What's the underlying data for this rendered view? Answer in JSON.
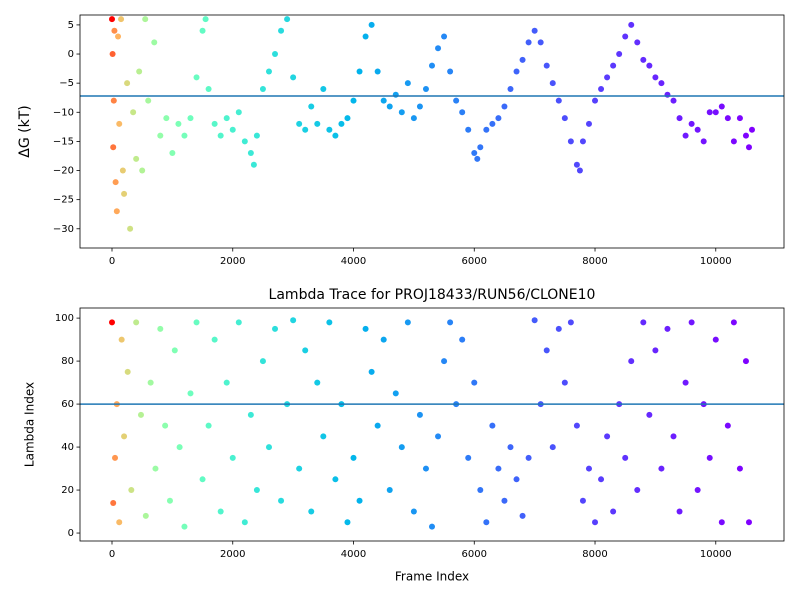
{
  "chart_data": [
    {
      "type": "scatter",
      "ylabel": "ΔG (kT)",
      "x": [
        0,
        10,
        20,
        30,
        40,
        60,
        80,
        100,
        120,
        150,
        180,
        200,
        250,
        300,
        350,
        400,
        450,
        500,
        550,
        600,
        700,
        800,
        900,
        1000,
        1100,
        1200,
        1300,
        1400,
        1500,
        1550,
        1600,
        1700,
        1800,
        1900,
        2000,
        2100,
        2200,
        2300,
        2350,
        2400,
        2500,
        2600,
        2700,
        2800,
        2900,
        3000,
        3100,
        3200,
        3300,
        3400,
        3500,
        3600,
        3700,
        3800,
        3900,
        4000,
        4100,
        4200,
        4300,
        4400,
        4500,
        4600,
        4700,
        4800,
        4900,
        5000,
        5100,
        5200,
        5300,
        5400,
        5500,
        5600,
        5700,
        5800,
        5900,
        6000,
        6050,
        6100,
        6200,
        6300,
        6400,
        6500,
        6600,
        6700,
        6800,
        6900,
        7000,
        7100,
        7200,
        7300,
        7400,
        7500,
        7600,
        7700,
        7750,
        7800,
        7900,
        8000,
        8100,
        8200,
        8300,
        8400,
        8500,
        8600,
        8700,
        8800,
        8900,
        9000,
        9100,
        9200,
        9300,
        9400,
        9500,
        9600,
        9700,
        9800,
        9900,
        10000,
        10100,
        10200,
        10300,
        10400,
        10500,
        10550,
        10600
      ],
      "values": [
        6,
        0,
        -16,
        -8,
        4,
        -22,
        -27,
        3,
        -12,
        6,
        -20,
        -24,
        -5,
        -30,
        -10,
        -18,
        -3,
        -20,
        6,
        -8,
        2,
        -14,
        -11,
        -17,
        -12,
        -14,
        -11,
        -4,
        4,
        6,
        -6,
        -12,
        -14,
        -11,
        -13,
        -10,
        -15,
        -17,
        -19,
        -14,
        -6,
        -3,
        0,
        4,
        6,
        -4,
        -12,
        -13,
        -9,
        -12,
        -6,
        -13,
        -14,
        -12,
        -11,
        -8,
        -3,
        3,
        5,
        -3,
        -8,
        -9,
        -7,
        -10,
        -5,
        -11,
        -9,
        -6,
        -2,
        1,
        3,
        -3,
        -8,
        -10,
        -13,
        -17,
        -18,
        -16,
        -13,
        -12,
        -11,
        -9,
        -6,
        -3,
        -1,
        2,
        4,
        2,
        -2,
        -5,
        -8,
        -11,
        -15,
        -19,
        -20,
        -15,
        -12,
        -8,
        -6,
        -4,
        -2,
        0,
        3,
        5,
        2,
        -1,
        -2,
        -4,
        -5,
        -7,
        -8,
        -11,
        -14,
        -12,
        -13,
        -15,
        -10,
        -10,
        -9,
        -11,
        -15,
        -11,
        -14,
        -16,
        -13
      ],
      "xlim": [
        -530,
        11130
      ],
      "ylim": [
        -33.3,
        6.7
      ],
      "xticks": [
        0,
        2000,
        4000,
        6000,
        8000,
        10000
      ],
      "yticks": [
        {
          "value": -30,
          "label": "−30"
        },
        {
          "value": -25,
          "label": "−25"
        },
        {
          "value": -20,
          "label": "−20"
        },
        {
          "value": -15,
          "label": "−15"
        },
        {
          "value": -10,
          "label": "−10"
        },
        {
          "value": -5,
          "label": "−5"
        },
        0,
        5
      ],
      "hline": -7.2,
      "hline_color": "#1f77b4",
      "colormap": "rainbow_r",
      "color_norm": {
        "type": "power",
        "gamma": 0.3
      }
    },
    {
      "type": "scatter",
      "title": "Lambda Trace for PROJ18433/RUN56/CLONE10",
      "xlabel": "Frame Index",
      "ylabel": "Lambda Index",
      "x": [
        0,
        20,
        50,
        80,
        120,
        160,
        200,
        260,
        320,
        400,
        480,
        560,
        640,
        720,
        800,
        880,
        960,
        1040,
        1120,
        1200,
        1300,
        1400,
        1500,
        1600,
        1700,
        1800,
        1900,
        2000,
        2100,
        2200,
        2300,
        2400,
        2500,
        2600,
        2700,
        2800,
        2900,
        3000,
        3100,
        3200,
        3300,
        3400,
        3500,
        3600,
        3700,
        3800,
        3900,
        4000,
        4100,
        4200,
        4300,
        4400,
        4500,
        4600,
        4700,
        4800,
        4900,
        5000,
        5100,
        5200,
        5300,
        5400,
        5500,
        5600,
        5700,
        5800,
        5900,
        6000,
        6100,
        6200,
        6300,
        6400,
        6500,
        6600,
        6700,
        6800,
        6900,
        7000,
        7100,
        7200,
        7300,
        7400,
        7500,
        7600,
        7700,
        7800,
        7900,
        8000,
        8100,
        8200,
        8300,
        8400,
        8500,
        8600,
        8700,
        8800,
        8900,
        9000,
        9100,
        9200,
        9300,
        9400,
        9500,
        9600,
        9700,
        9800,
        9900,
        10000,
        10100,
        10200,
        10300,
        10400,
        10500,
        10550
      ],
      "values": [
        98,
        14,
        35,
        60,
        5,
        90,
        45,
        75,
        20,
        98,
        55,
        8,
        70,
        30,
        95,
        50,
        15,
        85,
        40,
        3,
        65,
        98,
        25,
        50,
        90,
        10,
        70,
        35,
        98,
        5,
        55,
        20,
        80,
        40,
        95,
        15,
        60,
        99,
        30,
        85,
        10,
        70,
        45,
        98,
        25,
        60,
        5,
        35,
        15,
        95,
        75,
        50,
        90,
        20,
        65,
        40,
        98,
        10,
        55,
        30,
        3,
        45,
        80,
        98,
        60,
        90,
        35,
        70,
        20,
        5,
        50,
        30,
        15,
        40,
        25,
        8,
        35,
        99,
        60,
        85,
        40,
        95,
        70,
        98,
        50,
        15,
        30,
        5,
        25,
        45,
        10,
        60,
        35,
        80,
        20,
        98,
        55,
        85,
        30,
        95,
        45,
        10,
        70,
        98,
        20,
        60,
        35,
        90,
        5,
        50,
        98,
        30,
        80,
        5
      ],
      "xlim": [
        -530,
        11130
      ],
      "ylim": [
        -3.7,
        104.7
      ],
      "xticks": [
        0,
        2000,
        4000,
        6000,
        8000,
        10000
      ],
      "yticks": [
        0,
        20,
        40,
        60,
        80,
        100
      ],
      "hline": 60,
      "hline_color": "#1f77b4",
      "colormap": "rainbow_r",
      "color_norm": {
        "type": "power",
        "gamma": 0.3
      }
    }
  ]
}
